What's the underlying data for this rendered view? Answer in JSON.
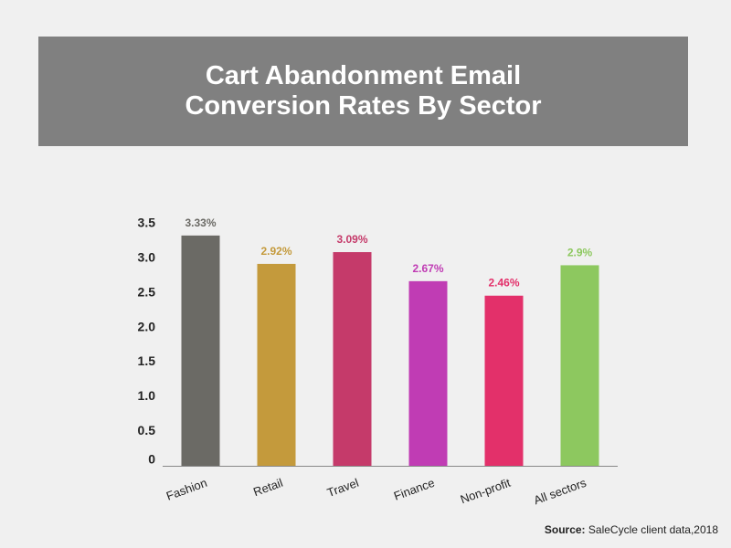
{
  "title_lines": [
    "Cart Abandonment Email",
    "Conversion Rates By Sector"
  ],
  "source": {
    "label": "Source:",
    "text": "SaleCycle client data,2018"
  },
  "chart_data": {
    "type": "bar",
    "title": "Cart Abandonment Email Conversion Rates By Sector",
    "categories": [
      "Fashion",
      "Retail",
      "Travel",
      "Finance",
      "Non-profit",
      "All sectors"
    ],
    "values": [
      3.33,
      2.92,
      3.09,
      2.67,
      2.46,
      2.9
    ],
    "data_labels": [
      "3.33%",
      "2.92%",
      "3.09%",
      "2.67%",
      "2.46%",
      "2.9%"
    ],
    "bar_colors": [
      "#6b6a65",
      "#c49a3c",
      "#c53a6a",
      "#c03cb4",
      "#e3306a",
      "#8dc85f"
    ],
    "ylim": [
      0,
      3.5
    ],
    "yticks": [
      "0",
      "0.5",
      "1.0",
      "1.5",
      "2.0",
      "2.5",
      "3.0",
      "3.5"
    ],
    "xlabel": "",
    "ylabel": "",
    "grid": false
  }
}
